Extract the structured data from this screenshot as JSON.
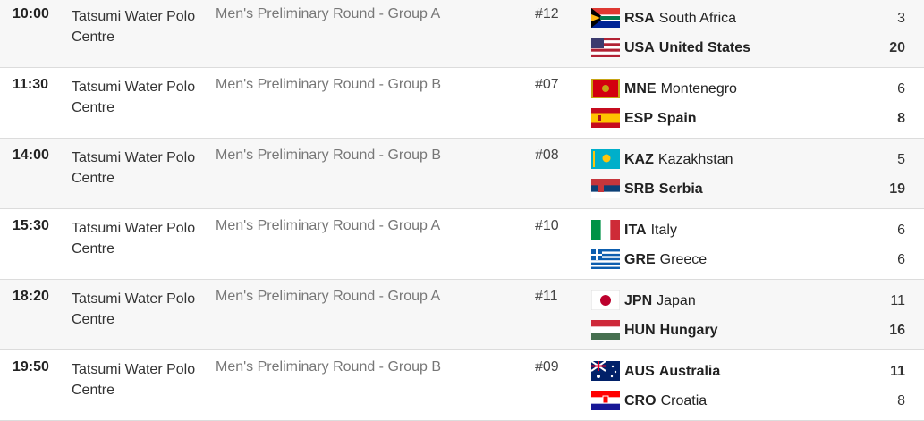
{
  "schedule": {
    "rows": [
      {
        "time": "10:00",
        "venue": "Tatsumi Water Polo Centre",
        "event": "Men's Preliminary Round - Group A",
        "match": "#12",
        "teams": [
          {
            "code": "RSA",
            "name": "South Africa",
            "score": 3,
            "bold": false
          },
          {
            "code": "USA",
            "name": "United States",
            "score": 20,
            "bold": true
          }
        ]
      },
      {
        "time": "11:30",
        "venue": "Tatsumi Water Polo Centre",
        "event": "Men's Preliminary Round - Group B",
        "match": "#07",
        "teams": [
          {
            "code": "MNE",
            "name": "Montenegro",
            "score": 6,
            "bold": false
          },
          {
            "code": "ESP",
            "name": "Spain",
            "score": 8,
            "bold": true
          }
        ]
      },
      {
        "time": "14:00",
        "venue": "Tatsumi Water Polo Centre",
        "event": "Men's Preliminary Round - Group B",
        "match": "#08",
        "teams": [
          {
            "code": "KAZ",
            "name": "Kazakhstan",
            "score": 5,
            "bold": false
          },
          {
            "code": "SRB",
            "name": "Serbia",
            "score": 19,
            "bold": true
          }
        ]
      },
      {
        "time": "15:30",
        "venue": "Tatsumi Water Polo Centre",
        "event": "Men's Preliminary Round - Group A",
        "match": "#10",
        "teams": [
          {
            "code": "ITA",
            "name": "Italy",
            "score": 6,
            "bold": false
          },
          {
            "code": "GRE",
            "name": "Greece",
            "score": 6,
            "bold": false
          }
        ]
      },
      {
        "time": "18:20",
        "venue": "Tatsumi Water Polo Centre",
        "event": "Men's Preliminary Round - Group A",
        "match": "#11",
        "teams": [
          {
            "code": "JPN",
            "name": "Japan",
            "score": 11,
            "bold": false
          },
          {
            "code": "HUN",
            "name": "Hungary",
            "score": 16,
            "bold": true
          }
        ]
      },
      {
        "time": "19:50",
        "venue": "Tatsumi Water Polo Centre",
        "event": "Men's Preliminary Round - Group B",
        "match": "#09",
        "teams": [
          {
            "code": "AUS",
            "name": "Australia",
            "score": 11,
            "bold": true
          },
          {
            "code": "CRO",
            "name": "Croatia",
            "score": 8,
            "bold": false
          }
        ]
      }
    ]
  }
}
